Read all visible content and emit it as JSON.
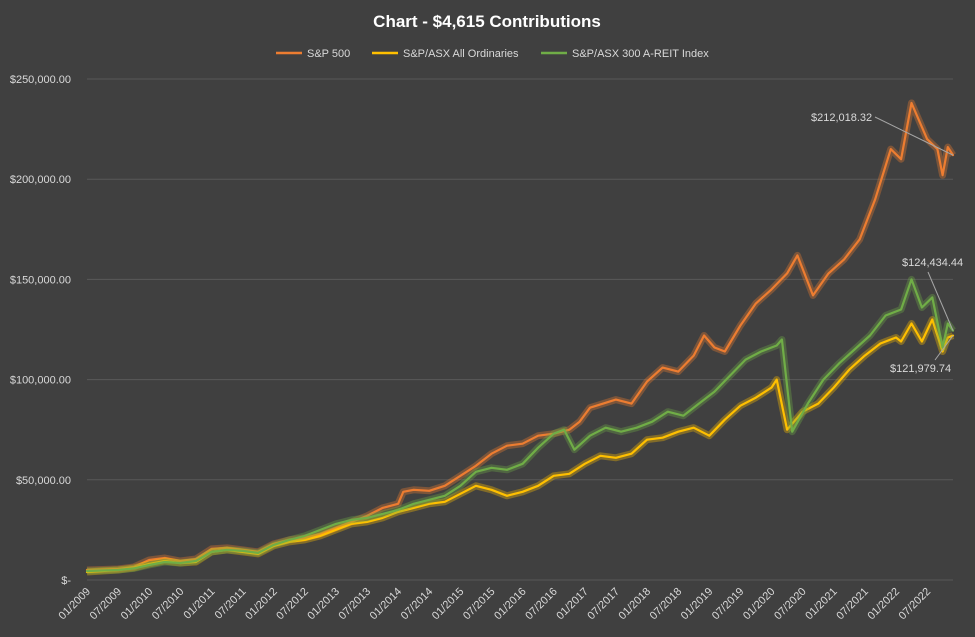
{
  "chart_data": {
    "type": "line",
    "title": "Chart - $4,615 Contributions",
    "xlabel": "",
    "ylabel": "",
    "ylim": [
      0,
      250000
    ],
    "grid": true,
    "legend_position": "top",
    "y_ticks": [
      "$-",
      "$50,000.00",
      "$100,000.00",
      "$150,000.00",
      "$200,000.00",
      "$250,000.00"
    ],
    "x_tick_labels": [
      "01/2009",
      "07/2009",
      "01/2010",
      "07/2010",
      "01/2011",
      "07/2011",
      "01/2012",
      "07/2012",
      "01/2013",
      "07/2013",
      "01/2014",
      "07/2014",
      "01/2015",
      "07/2015",
      "01/2016",
      "07/2016",
      "01/2017",
      "07/2017",
      "01/2018",
      "07/2018",
      "01/2019",
      "07/2019",
      "01/2020",
      "07/2020",
      "01/2021",
      "07/2021",
      "01/2022",
      "07/2022"
    ],
    "x_start": "2009-01",
    "x_end": "2022-12",
    "series": [
      {
        "name": "S&P 500",
        "color": "#ED7D31",
        "points": [
          [
            "2009-01",
            5000
          ],
          [
            "2009-07",
            5500
          ],
          [
            "2009-10",
            6500
          ],
          [
            "2010-01",
            10000
          ],
          [
            "2010-04",
            11000
          ],
          [
            "2010-07",
            9500
          ],
          [
            "2010-10",
            10500
          ],
          [
            "2011-01",
            15500
          ],
          [
            "2011-04",
            16000
          ],
          [
            "2011-07",
            15000
          ],
          [
            "2011-10",
            14000
          ],
          [
            "2012-01",
            18000
          ],
          [
            "2012-04",
            20000
          ],
          [
            "2012-07",
            21000
          ],
          [
            "2012-10",
            23000
          ],
          [
            "2013-01",
            26000
          ],
          [
            "2013-04",
            29000
          ],
          [
            "2013-07",
            32000
          ],
          [
            "2013-10",
            36000
          ],
          [
            "2014-01",
            38000
          ],
          [
            "2014-02",
            44000
          ],
          [
            "2014-04",
            45000
          ],
          [
            "2014-07",
            44500
          ],
          [
            "2014-10",
            47000
          ],
          [
            "2015-01",
            52000
          ],
          [
            "2015-04",
            57000
          ],
          [
            "2015-07",
            63000
          ],
          [
            "2015-10",
            67000
          ],
          [
            "2016-01",
            68000
          ],
          [
            "2016-04",
            72000
          ],
          [
            "2016-07",
            73000
          ],
          [
            "2016-10",
            75000
          ],
          [
            "2016-12",
            79000
          ],
          [
            "2017-02",
            86000
          ],
          [
            "2017-07",
            90000
          ],
          [
            "2017-10",
            88000
          ],
          [
            "2018-01",
            99000
          ],
          [
            "2018-04",
            106000
          ],
          [
            "2018-07",
            104000
          ],
          [
            "2018-10",
            112000
          ],
          [
            "2018-12",
            122000
          ],
          [
            "2019-02",
            116000
          ],
          [
            "2019-04",
            114000
          ],
          [
            "2019-07",
            127000
          ],
          [
            "2019-10",
            138000
          ],
          [
            "2020-01",
            145000
          ],
          [
            "2020-04",
            153000
          ],
          [
            "2020-06",
            162000
          ],
          [
            "2020-09",
            142000
          ],
          [
            "2020-12",
            153000
          ],
          [
            "2021-03",
            160000
          ],
          [
            "2021-06",
            170000
          ],
          [
            "2021-09",
            190000
          ],
          [
            "2021-12",
            215000
          ],
          [
            "2022-02",
            210000
          ],
          [
            "2022-04",
            238000
          ],
          [
            "2022-07",
            220000
          ],
          [
            "2022-09",
            215000
          ],
          [
            "2022-10",
            202000
          ],
          [
            "2022-11",
            216000
          ],
          [
            "2022-12",
            212018.32
          ]
        ]
      },
      {
        "name": "S&P/ASX All Ordinaries",
        "color": "#FFC000",
        "points": [
          [
            "2009-01",
            4000
          ],
          [
            "2009-07",
            5000
          ],
          [
            "2009-10",
            6000
          ],
          [
            "2010-01",
            8000
          ],
          [
            "2010-04",
            9500
          ],
          [
            "2010-07",
            8500
          ],
          [
            "2010-10",
            9000
          ],
          [
            "2011-01",
            14000
          ],
          [
            "2011-04",
            15000
          ],
          [
            "2011-07",
            14000
          ],
          [
            "2011-10",
            13000
          ],
          [
            "2012-01",
            17000
          ],
          [
            "2012-04",
            19000
          ],
          [
            "2012-07",
            20000
          ],
          [
            "2012-10",
            22000
          ],
          [
            "2013-01",
            25000
          ],
          [
            "2013-04",
            28000
          ],
          [
            "2013-07",
            29000
          ],
          [
            "2013-10",
            31000
          ],
          [
            "2014-01",
            34000
          ],
          [
            "2014-04",
            36000
          ],
          [
            "2014-07",
            38000
          ],
          [
            "2014-10",
            39000
          ],
          [
            "2015-01",
            43000
          ],
          [
            "2015-04",
            47000
          ],
          [
            "2015-07",
            45000
          ],
          [
            "2015-10",
            42000
          ],
          [
            "2016-01",
            44000
          ],
          [
            "2016-04",
            47000
          ],
          [
            "2016-07",
            52000
          ],
          [
            "2016-10",
            53000
          ],
          [
            "2017-01",
            58000
          ],
          [
            "2017-04",
            62000
          ],
          [
            "2017-07",
            61000
          ],
          [
            "2017-10",
            63000
          ],
          [
            "2018-01",
            70000
          ],
          [
            "2018-04",
            71000
          ],
          [
            "2018-07",
            74000
          ],
          [
            "2018-10",
            76000
          ],
          [
            "2019-01",
            72000
          ],
          [
            "2019-04",
            80000
          ],
          [
            "2019-07",
            87000
          ],
          [
            "2019-10",
            91000
          ],
          [
            "2020-01",
            96000
          ],
          [
            "2020-02",
            100000
          ],
          [
            "2020-04",
            75000
          ],
          [
            "2020-07",
            84000
          ],
          [
            "2020-10",
            88000
          ],
          [
            "2021-01",
            96000
          ],
          [
            "2021-04",
            105000
          ],
          [
            "2021-07",
            112000
          ],
          [
            "2021-10",
            118000
          ],
          [
            "2022-01",
            121000
          ],
          [
            "2022-02",
            119000
          ],
          [
            "2022-04",
            128000
          ],
          [
            "2022-06",
            119000
          ],
          [
            "2022-08",
            130000
          ],
          [
            "2022-10",
            114000
          ],
          [
            "2022-11",
            121000
          ],
          [
            "2022-12",
            121979.74
          ]
        ]
      },
      {
        "name": "S&P/ASX 300 A-REIT Index",
        "color": "#70AD47",
        "points": [
          [
            "2009-01",
            4500
          ],
          [
            "2009-07",
            5000
          ],
          [
            "2009-10",
            5800
          ],
          [
            "2010-01",
            7500
          ],
          [
            "2010-04",
            9000
          ],
          [
            "2010-07",
            8500
          ],
          [
            "2010-10",
            9500
          ],
          [
            "2011-01",
            14000
          ],
          [
            "2011-04",
            15000
          ],
          [
            "2011-07",
            14500
          ],
          [
            "2011-10",
            13500
          ],
          [
            "2012-01",
            17500
          ],
          [
            "2012-04",
            20000
          ],
          [
            "2012-07",
            22000
          ],
          [
            "2012-10",
            25000
          ],
          [
            "2013-01",
            28000
          ],
          [
            "2013-04",
            30000
          ],
          [
            "2013-07",
            31000
          ],
          [
            "2013-10",
            33000
          ],
          [
            "2014-01",
            35000
          ],
          [
            "2014-04",
            38000
          ],
          [
            "2014-07",
            40000
          ],
          [
            "2014-10",
            42000
          ],
          [
            "2015-01",
            47000
          ],
          [
            "2015-04",
            54000
          ],
          [
            "2015-07",
            56000
          ],
          [
            "2015-10",
            55000
          ],
          [
            "2016-01",
            58000
          ],
          [
            "2016-04",
            66000
          ],
          [
            "2016-07",
            73000
          ],
          [
            "2016-09",
            75000
          ],
          [
            "2016-11",
            65000
          ],
          [
            "2017-02",
            72000
          ],
          [
            "2017-05",
            76000
          ],
          [
            "2017-08",
            74000
          ],
          [
            "2017-11",
            76000
          ],
          [
            "2018-02",
            79000
          ],
          [
            "2018-05",
            84000
          ],
          [
            "2018-08",
            82000
          ],
          [
            "2018-11",
            88000
          ],
          [
            "2019-02",
            94000
          ],
          [
            "2019-05",
            102000
          ],
          [
            "2019-08",
            110000
          ],
          [
            "2019-11",
            114000
          ],
          [
            "2020-02",
            117000
          ],
          [
            "2020-03",
            120000
          ],
          [
            "2020-05",
            74000
          ],
          [
            "2020-08",
            88000
          ],
          [
            "2020-11",
            100000
          ],
          [
            "2021-02",
            108000
          ],
          [
            "2021-05",
            115000
          ],
          [
            "2021-08",
            122000
          ],
          [
            "2021-11",
            132000
          ],
          [
            "2022-02",
            135000
          ],
          [
            "2022-04",
            150000
          ],
          [
            "2022-06",
            136000
          ],
          [
            "2022-08",
            141000
          ],
          [
            "2022-10",
            116000
          ],
          [
            "2022-11",
            128000
          ],
          [
            "2022-12",
            124434.44
          ]
        ]
      }
    ],
    "annotations": [
      {
        "text": "$212,018.32",
        "series": "S&P 500"
      },
      {
        "text": "$124,434.44",
        "series": "S&P/ASX 300 A-REIT Index"
      },
      {
        "text": "$121,979.74",
        "series": "S&P/ASX All Ordinaries"
      }
    ]
  }
}
